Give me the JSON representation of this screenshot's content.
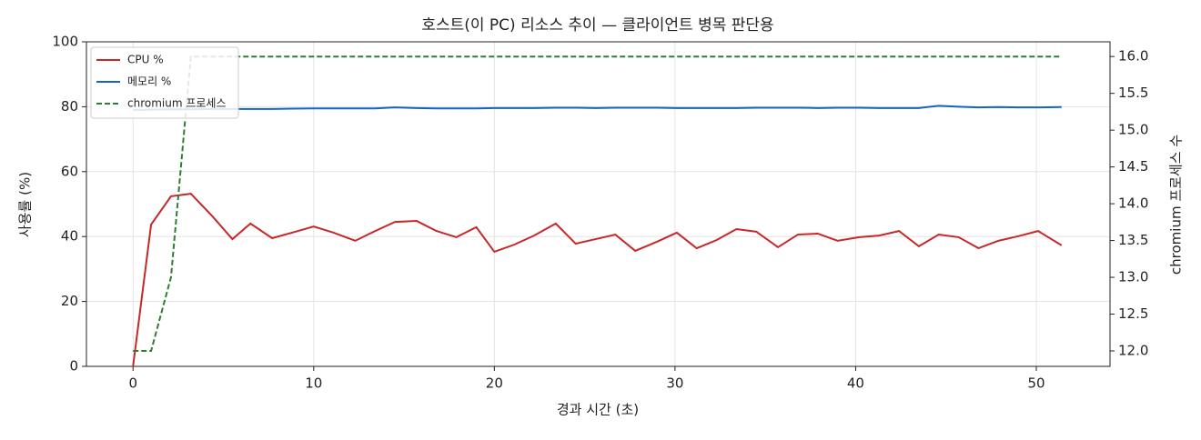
{
  "chart_data": {
    "type": "line",
    "title": "호스트(이 PC) 리소스 추이 — 클라이언트 병목 판단용",
    "xlabel": "경과 시간 (초)",
    "ylabel": "사용률 (%)",
    "y2label": "chromium 프로세스 수",
    "x": [
      0,
      1.0,
      2.1,
      3.2,
      4.4,
      5.5,
      6.5,
      7.7,
      8.8,
      10.0,
      11.1,
      12.3,
      13.4,
      14.5,
      15.7,
      16.8,
      17.9,
      19.0,
      20.0,
      21.1,
      22.2,
      23.4,
      24.5,
      25.6,
      26.7,
      27.8,
      29.0,
      30.1,
      31.2,
      32.3,
      33.4,
      34.5,
      35.7,
      36.8,
      37.9,
      39.0,
      40.2,
      41.3,
      42.4,
      43.5,
      44.6,
      45.7,
      46.8,
      47.9,
      49.0,
      50.1,
      51.4
    ],
    "series": [
      {
        "name": "CPU %",
        "color": "#c62828",
        "dash": false,
        "values": [
          0,
          43.7,
          52.4,
          53.2,
          46.2,
          39.2,
          44.0,
          39.5,
          41.2,
          43.1,
          41.2,
          38.7,
          41.7,
          44.5,
          44.8,
          41.7,
          39.8,
          42.9,
          35.3,
          37.5,
          40.3,
          44.0,
          37.8,
          39.2,
          40.6,
          35.6,
          38.4,
          41.2,
          36.4,
          38.9,
          42.3,
          41.5,
          36.7,
          40.6,
          40.9,
          38.7,
          39.8,
          40.3,
          41.7,
          37.0,
          40.6,
          39.8,
          36.4,
          38.7,
          40.1,
          41.7,
          37.3
        ]
      },
      {
        "name": "메모리 %",
        "color": "#1565c0",
        "dash": false,
        "values": [
          79.0,
          79.1,
          79.2,
          79.2,
          79.3,
          79.3,
          79.3,
          79.3,
          79.4,
          79.5,
          79.5,
          79.5,
          79.5,
          79.8,
          79.6,
          79.5,
          79.5,
          79.5,
          79.6,
          79.6,
          79.6,
          79.7,
          79.7,
          79.6,
          79.7,
          79.7,
          79.7,
          79.6,
          79.6,
          79.6,
          79.6,
          79.7,
          79.7,
          79.7,
          79.6,
          79.7,
          79.7,
          79.6,
          79.6,
          79.6,
          80.3,
          80.0,
          79.8,
          79.9,
          79.8,
          79.8,
          79.9
        ]
      },
      {
        "name": "chromium 프로세스",
        "color": "#2e7d32",
        "dash": true,
        "axis": "y2",
        "values": [
          12,
          12,
          13,
          16,
          16,
          16,
          16,
          16,
          16,
          16,
          16,
          16,
          16,
          16,
          16,
          16,
          16,
          16,
          16,
          16,
          16,
          16,
          16,
          16,
          16,
          16,
          16,
          16,
          16,
          16,
          16,
          16,
          16,
          16,
          16,
          16,
          16,
          16,
          16,
          16,
          16,
          16,
          16,
          16,
          16,
          16,
          16
        ]
      }
    ],
    "xlim": [
      -2.58,
      54.08
    ],
    "xticks": [
      0,
      10,
      20,
      30,
      40,
      50
    ],
    "ylim": [
      0,
      100
    ],
    "yticks": [
      0,
      20,
      40,
      60,
      80,
      100
    ],
    "y2lim": [
      11.79,
      16.2
    ],
    "y2ticks": [
      {
        "value": 12,
        "label": "12.0"
      },
      {
        "value": 12.5,
        "label": "12.5"
      },
      {
        "value": 13,
        "label": "13.0"
      },
      {
        "value": 13.5,
        "label": "13.5"
      },
      {
        "value": 14,
        "label": "14.0"
      },
      {
        "value": 14.5,
        "label": "14.5"
      },
      {
        "value": 15,
        "label": "15.0"
      },
      {
        "value": 15.5,
        "label": "15.5"
      },
      {
        "value": 16,
        "label": "16.0"
      }
    ],
    "grid": true,
    "legend": "upper-left"
  }
}
